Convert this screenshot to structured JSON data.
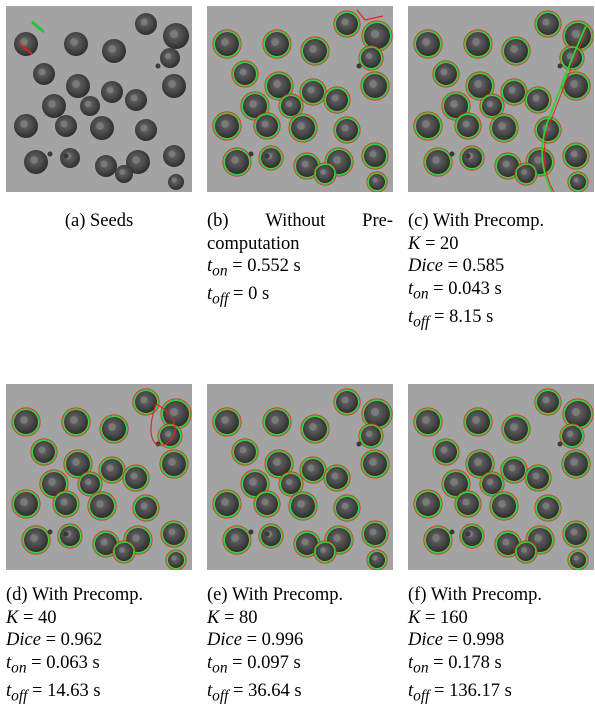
{
  "panels": [
    {
      "label": "(a)",
      "title": "Seeds",
      "lines": []
    },
    {
      "label": "(b)",
      "title_parts": [
        "Without",
        "Pre-"
      ],
      "title_cont": "computation",
      "lines": [
        {
          "var": "t",
          "sub": "on",
          "eq": " = 0.552 s"
        },
        {
          "var": "t",
          "sub": "off",
          "eq": " = 0 s"
        }
      ]
    },
    {
      "label": "(c)",
      "title": "With Precomp.",
      "lines": [
        {
          "var": "K",
          "sub": "",
          "eq": " = 20"
        },
        {
          "var": "Dice",
          "sub": "",
          "eq": " = 0.585"
        },
        {
          "var": "t",
          "sub": "on",
          "eq": " = 0.043 s"
        },
        {
          "var": "t",
          "sub": "off",
          "eq": " = 8.15 s"
        }
      ]
    },
    {
      "label": "(d)",
      "title": "With Precomp.",
      "lines": [
        {
          "var": "K",
          "sub": "",
          "eq": " = 40"
        },
        {
          "var": "Dice",
          "sub": "",
          "eq": " = 0.962"
        },
        {
          "var": "t",
          "sub": "on",
          "eq": " = 0.063 s"
        },
        {
          "var": "t",
          "sub": "off",
          "eq": " = 14.63 s"
        }
      ]
    },
    {
      "label": "(e)",
      "title": "With Precomp.",
      "lines": [
        {
          "var": "K",
          "sub": "",
          "eq": " = 80"
        },
        {
          "var": "Dice",
          "sub": "",
          "eq": " = 0.996"
        },
        {
          "var": "t",
          "sub": "on",
          "eq": " = 0.097 s"
        },
        {
          "var": "t",
          "sub": "off",
          "eq": " = 36.64 s"
        }
      ]
    },
    {
      "label": "(f)",
      "title": "With Precomp.",
      "lines": [
        {
          "var": "K",
          "sub": "",
          "eq": " = 160"
        },
        {
          "var": "Dice",
          "sub": "",
          "eq": " = 0.998"
        },
        {
          "var": "t",
          "sub": "on",
          "eq": " = 0.178 s"
        },
        {
          "var": "t",
          "sub": "off",
          "eq": " = 136.17 s"
        }
      ]
    }
  ],
  "colors": {
    "background_gray": "#a3a3a3",
    "cell_dark": "#2b2b2b",
    "contour_green": "#2fd12f",
    "contour_red": "#e0231c",
    "seed_green": "#22c63a",
    "seed_red": "#d9261c"
  }
}
